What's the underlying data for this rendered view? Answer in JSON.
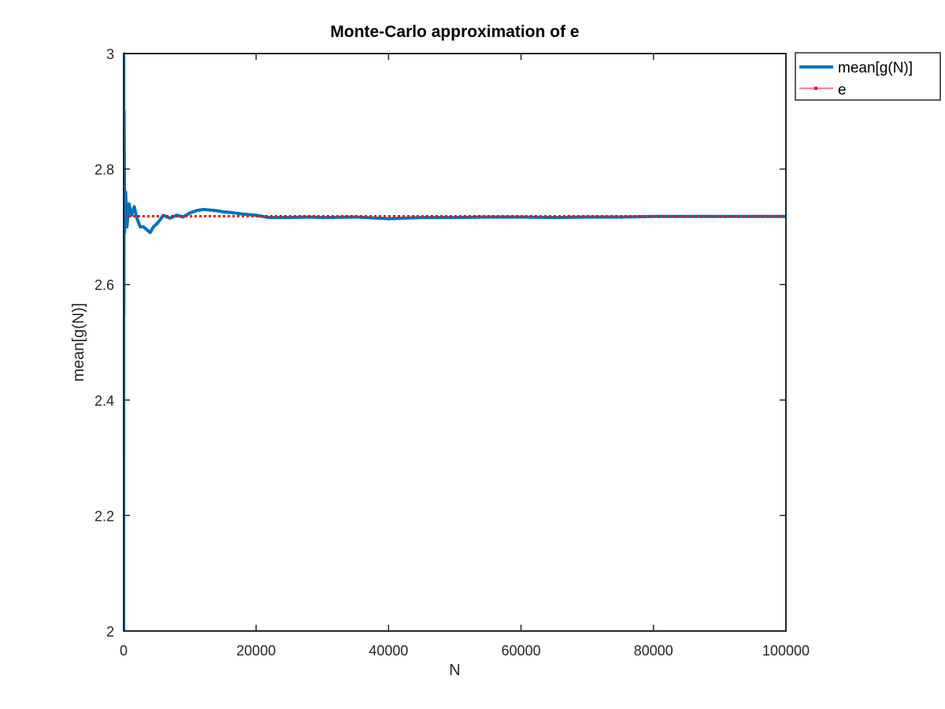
{
  "chart_data": {
    "type": "line",
    "title": "Monte-Carlo approximation of e",
    "xlabel": "N",
    "ylabel": "mean[g(N)]",
    "xlim": [
      0,
      100000
    ],
    "ylim": [
      2,
      3
    ],
    "xticks": [
      0,
      20000,
      40000,
      60000,
      80000,
      100000
    ],
    "yticks": [
      2,
      2.2,
      2.4,
      2.6,
      2.8,
      3
    ],
    "grid": false,
    "legend_location": "outside-top-right",
    "series": [
      {
        "name": "mean[g(N)]",
        "color": "#0072BD",
        "style": "solid",
        "x": [
          1,
          20,
          40,
          80,
          150,
          300,
          500,
          800,
          1200,
          1600,
          2000,
          2500,
          3000,
          3500,
          4000,
          4500,
          5000,
          5500,
          6000,
          7000,
          8000,
          9000,
          10000,
          11000,
          12000,
          13000,
          14000,
          15000,
          16000,
          18000,
          20000,
          22000,
          25000,
          28000,
          30000,
          35000,
          40000,
          45000,
          50000,
          55000,
          60000,
          65000,
          70000,
          75000,
          80000,
          85000,
          90000,
          95000,
          100000
        ],
        "y": [
          2,
          3,
          2.55,
          2.9,
          2.69,
          2.76,
          2.7,
          2.74,
          2.72,
          2.735,
          2.715,
          2.7,
          2.7,
          2.695,
          2.69,
          2.7,
          2.705,
          2.712,
          2.72,
          2.715,
          2.72,
          2.717,
          2.724,
          2.728,
          2.73,
          2.729,
          2.728,
          2.726,
          2.725,
          2.722,
          2.72,
          2.716,
          2.716,
          2.717,
          2.716,
          2.717,
          2.714,
          2.716,
          2.716,
          2.717,
          2.717,
          2.716,
          2.717,
          2.717,
          2.718,
          2.718,
          2.718,
          2.718,
          2.718
        ]
      },
      {
        "name": "e",
        "color": "#FF0000",
        "style": "dotted",
        "x": [
          0,
          100000
        ],
        "y": [
          2.718281828,
          2.718281828
        ]
      }
    ]
  }
}
